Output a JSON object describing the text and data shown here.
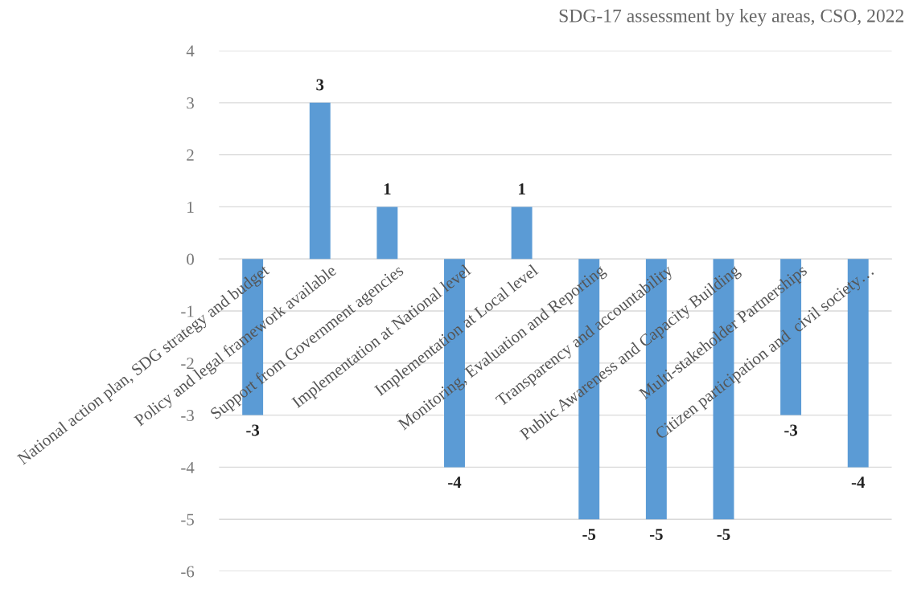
{
  "chart_data": {
    "type": "bar",
    "title": "SDG-17 assessment by key areas, CSO, 2022",
    "categories": [
      "National action plan, SDG strategy and budget",
      "Policy and legal framework available",
      "Support from Government agencies",
      "Implementation at National level",
      "Implementation at Local level",
      "Monitoring, Evaluation and Reporting",
      "Transparency and accountability",
      "Public Awareness and Capacity Building",
      "Multi-stakeholder Partnerships",
      "Citizen participation and  civil society…"
    ],
    "values": [
      -3,
      3,
      1,
      -4,
      1,
      -5,
      -5,
      -5,
      -3,
      -4
    ],
    "color": "#5b9bd5",
    "ylim": [
      -6,
      4
    ],
    "yticks": [
      -6,
      -5,
      -4,
      -3,
      -2,
      -1,
      0,
      1,
      2,
      3,
      4
    ],
    "grid": "y",
    "data_labels": true
  }
}
